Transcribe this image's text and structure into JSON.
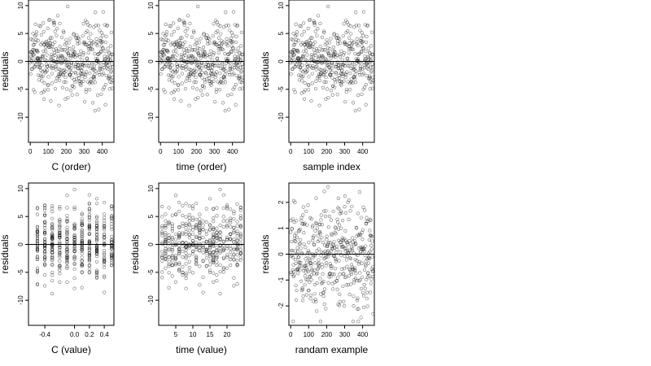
{
  "figure": {
    "background": "#ffffff",
    "point_color": "#000000",
    "marker": "open-circle"
  },
  "chart_data": [
    {
      "type": "scatter",
      "xlabel": "C (order)",
      "ylabel": "residuals",
      "xlim": [
        -10,
        465
      ],
      "ylim": [
        -14.5,
        11
      ],
      "xticks": [
        0,
        100,
        200,
        300,
        400
      ],
      "yticks": [
        -10,
        -5,
        0,
        5,
        10
      ],
      "hline": 0,
      "n_points": 460,
      "spread_sd": 3.4,
      "x_kind": "index"
    },
    {
      "type": "scatter",
      "xlabel": "time (order)",
      "ylabel": "residuals",
      "xlim": [
        -10,
        465
      ],
      "ylim": [
        -14.5,
        11
      ],
      "xticks": [
        0,
        100,
        200,
        300,
        400
      ],
      "yticks": [
        -10,
        -5,
        0,
        5,
        10
      ],
      "hline": 0,
      "n_points": 460,
      "spread_sd": 3.4,
      "x_kind": "index"
    },
    {
      "type": "scatter",
      "xlabel": "sample index",
      "ylabel": "residuals",
      "xlim": [
        -10,
        465
      ],
      "ylim": [
        -14.5,
        11
      ],
      "xticks": [
        0,
        100,
        200,
        300,
        400
      ],
      "yticks": [
        -10,
        -5,
        0,
        5,
        10
      ],
      "hline": 0,
      "n_points": 460,
      "spread_sd": 3.4,
      "x_kind": "index"
    },
    {
      "type": "scatter",
      "xlabel": "C (value)",
      "ylabel": "residuals",
      "xlim": [
        -0.62,
        0.53
      ],
      "ylim": [
        -14.5,
        11
      ],
      "xticks": [
        -0.4,
        0.0,
        0.2,
        0.4
      ],
      "xtick_labels": [
        "-0.4",
        "0.0",
        "0.2",
        "0.4"
      ],
      "yticks": [
        -10,
        -5,
        0,
        5,
        10
      ],
      "hline": 0,
      "n_points": 460,
      "spread_sd": 3.4,
      "x_kind": "discrete",
      "x_levels": [
        -0.5,
        -0.4,
        -0.3,
        -0.2,
        -0.1,
        0.0,
        0.1,
        0.2,
        0.3,
        0.4,
        0.5
      ]
    },
    {
      "type": "scatter",
      "xlabel": "time (value)",
      "ylabel": "residuals",
      "xlim": [
        0,
        25
      ],
      "ylim": [
        -14.5,
        11
      ],
      "xticks": [
        5,
        10,
        15,
        20
      ],
      "yticks": [
        -10,
        -5,
        0,
        5,
        10
      ],
      "hline": 0,
      "n_points": 460,
      "spread_sd": 3.4,
      "x_kind": "discrete",
      "x_levels": [
        1,
        2,
        3,
        4,
        5,
        6,
        7,
        8,
        9,
        10,
        11,
        12,
        13,
        14,
        15,
        16,
        17,
        18,
        19,
        20,
        21,
        22,
        23,
        24
      ]
    },
    {
      "type": "scatter",
      "xlabel": "randam example",
      "ylabel": "residuals",
      "xlim": [
        -10,
        465
      ],
      "ylim": [
        -2.75,
        2.75
      ],
      "xticks": [
        0,
        100,
        200,
        300,
        400
      ],
      "yticks": [
        -2,
        -1,
        0,
        1,
        2
      ],
      "hline": 0,
      "n_points": 460,
      "spread_sd": 1.0,
      "x_kind": "index"
    }
  ]
}
